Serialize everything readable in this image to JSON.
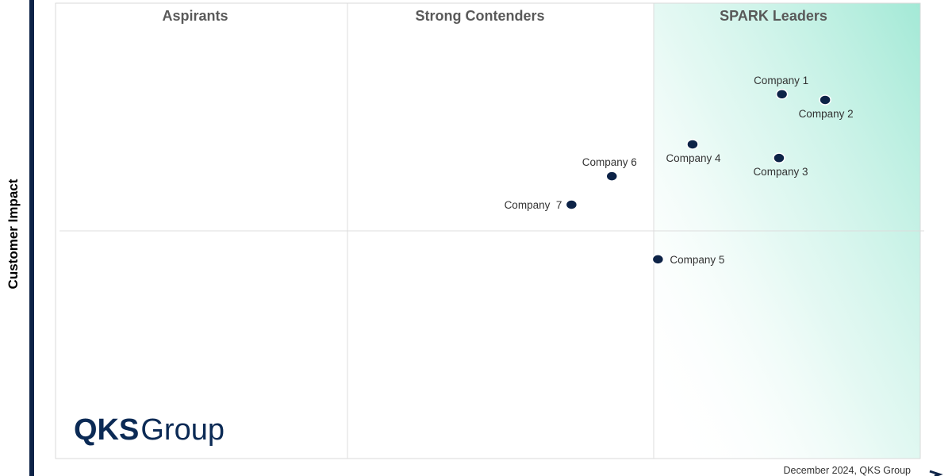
{
  "chart_data": {
    "type": "scatter",
    "ylabel": "Customer Impact",
    "xlabel": "",
    "xlim": [
      0,
      3
    ],
    "ylim": [
      0,
      2
    ],
    "quadrant_labels": [
      "Aspirants",
      "Strong Contenders",
      "SPARK Leaders"
    ],
    "points": [
      {
        "label": "Company 1",
        "x": 2.52,
        "y": 1.6
      },
      {
        "label": "Company 2",
        "x": 2.67,
        "y": 1.575
      },
      {
        "label": "Company 3",
        "x": 2.51,
        "y": 1.32
      },
      {
        "label": "Company 4",
        "x": 2.21,
        "y": 1.38
      },
      {
        "label": "Company 5",
        "x": 2.09,
        "y": 0.875
      },
      {
        "label": "Company 6",
        "x": 1.93,
        "y": 1.24
      },
      {
        "label": "Company  7",
        "x": 1.79,
        "y": 1.115
      }
    ],
    "footer": "December 2024, QKS Group"
  },
  "logo": {
    "part1": "QKS",
    "part2": "Group",
    "color": "#0b2a55"
  },
  "colors": {
    "marker": "#0d2347",
    "leader_gradient": "#a3e9d6",
    "left_bar": "#0d2347",
    "border": "#d9d9d9"
  }
}
